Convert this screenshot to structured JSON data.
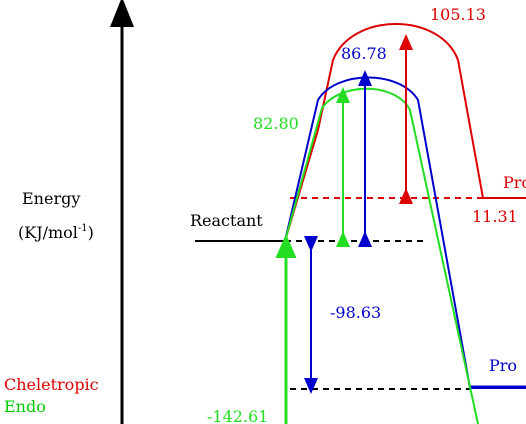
{
  "axis": {
    "label_line1": "Energy",
    "label_line2_main": "(KJ/mol",
    "label_line2_sup": "-1",
    "label_line2_end": ")"
  },
  "reactant_label": "Reactant",
  "values": {
    "cheletropic_barrier": "105.13",
    "cheletropic_product": "11.31",
    "blue_barrier": "86.78",
    "endo_barrier": "82.80",
    "blue_product": "-98.63",
    "endo_product": "-142.61"
  },
  "product_labels": {
    "cheletropic": "Pro",
    "blue": "Pro"
  },
  "legend": [
    {
      "label": "Cheletropic",
      "color": "#dd0000"
    },
    {
      "label": "Endo",
      "color": "#00cc00"
    }
  ],
  "colors": {
    "cheletropic": "#dd0000",
    "blue": "#0000cc",
    "endo": "#22dd22",
    "axis": "#000000"
  }
}
